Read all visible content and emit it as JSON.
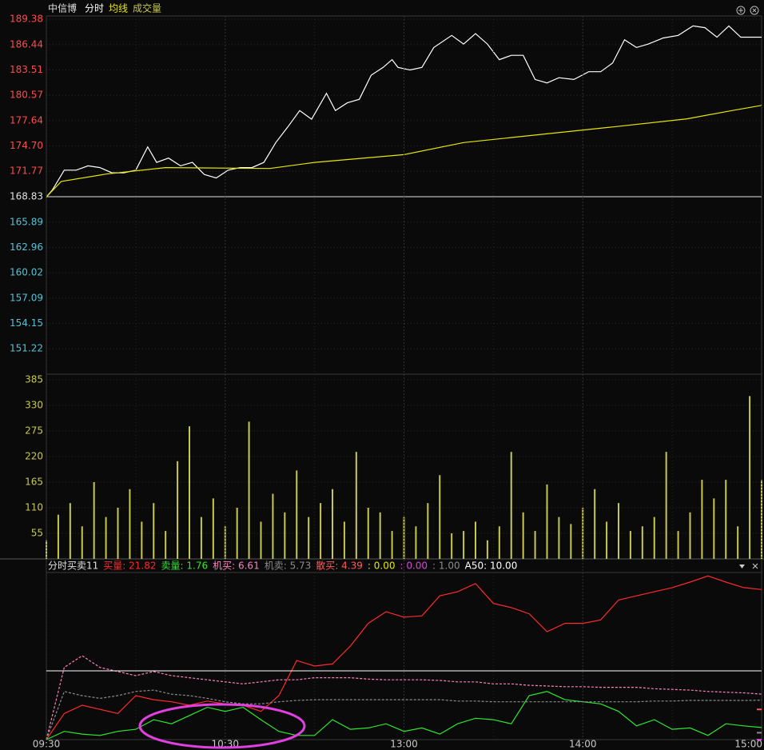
{
  "chart_data": [
    {
      "type": "line",
      "title": "中信博",
      "series": [
        {
          "name": "分时",
          "color": "#ffffff",
          "x": [
            0,
            2,
            6,
            10,
            14,
            18,
            22,
            26,
            30,
            34,
            37,
            41,
            45,
            49,
            53,
            57,
            61,
            65,
            69,
            73,
            77,
            81,
            85,
            89,
            94,
            97,
            101,
            105,
            109,
            113,
            116,
            118,
            122,
            126,
            130,
            136,
            140,
            144,
            148,
            152,
            156,
            160,
            164,
            168,
            172,
            177,
            182,
            186,
            190,
            194,
            198,
            202,
            207,
            212,
            217,
            221,
            225,
            229,
            233,
            240
          ],
          "values": [
            168.8,
            169.6,
            171.9,
            171.9,
            172.4,
            172.2,
            171.6,
            171.6,
            171.9,
            174.6,
            172.8,
            173.3,
            172.4,
            172.8,
            171.4,
            171.0,
            171.9,
            172.2,
            172.2,
            172.8,
            175.1,
            176.9,
            178.8,
            177.8,
            180.8,
            178.8,
            179.7,
            180.1,
            182.9,
            183.8,
            184.7,
            183.8,
            183.5,
            183.8,
            186.1,
            187.5,
            186.5,
            187.7,
            186.5,
            184.7,
            185.2,
            185.2,
            182.4,
            182.0,
            182.6,
            182.4,
            183.3,
            183.3,
            184.3,
            187.0,
            186.1,
            186.5,
            187.2,
            187.5,
            188.6,
            188.4,
            187.3,
            188.6,
            187.3,
            187.3
          ]
        },
        {
          "name": "均线",
          "color": "#e6e600",
          "x": [
            0,
            5,
            20,
            40,
            75,
            90,
            120,
            140,
            165,
            190,
            215,
            230,
            240
          ],
          "values": [
            168.8,
            170.6,
            171.45,
            172.2,
            172.1,
            172.8,
            173.7,
            175.1,
            176.0,
            176.9,
            177.85,
            178.8,
            179.4
          ]
        }
      ],
      "xlim": [
        0,
        240
      ],
      "ylim": [
        148.28,
        189.75
      ],
      "yticks": [
        189.38,
        186.44,
        183.51,
        180.57,
        177.64,
        {
          "value": 174.7,
          "label": "174.70"
        },
        171.77,
        168.83,
        165.89,
        162.96,
        160.02,
        157.09,
        154.15,
        151.22
      ],
      "prev_close": 168.83,
      "up_color": "#ff4b4b",
      "down_color": "#56c2d6",
      "flat_color": "#e0e0e0",
      "grid": true
    },
    {
      "type": "bar",
      "series": [
        {
          "name": "成交量",
          "color": "#c8c850",
          "x": [
            0,
            4,
            8,
            12,
            16,
            20,
            24,
            28,
            32,
            36,
            40,
            44,
            48,
            52,
            56,
            60,
            64,
            68,
            72,
            76,
            80,
            84,
            88,
            92,
            96,
            100,
            104,
            108,
            112,
            116,
            120,
            124,
            128,
            132,
            136,
            140,
            144,
            148,
            152,
            156,
            160,
            164,
            168,
            172,
            176,
            180,
            184,
            188,
            192,
            196,
            200,
            204,
            208,
            212,
            216,
            220,
            224,
            228,
            232,
            236,
            240
          ],
          "values": [
            40,
            95,
            120,
            70,
            165,
            90,
            110,
            150,
            80,
            120,
            60,
            210,
            285,
            90,
            130,
            70,
            110,
            295,
            80,
            140,
            100,
            190,
            90,
            120,
            150,
            80,
            230,
            110,
            100,
            60,
            90,
            70,
            120,
            180,
            55,
            60,
            80,
            40,
            70,
            230,
            100,
            60,
            160,
            90,
            75,
            110,
            150,
            80,
            120,
            60,
            70,
            90,
            230,
            60,
            100,
            170,
            130,
            170,
            70,
            350,
            170
          ]
        }
      ],
      "xlim": [
        0,
        240
      ],
      "ylim": [
        0,
        397
      ],
      "yticks": [
        55,
        110,
        165,
        220,
        275,
        330,
        385
      ],
      "tick_color": "#c8c850",
      "grid": true
    },
    {
      "type": "line",
      "title": "分时买卖11",
      "legend_separator": ": ",
      "x": [
        0,
        6,
        12,
        18,
        24,
        30,
        36,
        42,
        48,
        54,
        60,
        66,
        72,
        78,
        84,
        90,
        96,
        102,
        108,
        114,
        120,
        126,
        132,
        138,
        144,
        150,
        156,
        162,
        168,
        174,
        180,
        186,
        192,
        198,
        204,
        210,
        216,
        222,
        228,
        234,
        240
      ],
      "series": [
        {
          "name": "买量",
          "color": "#ff2a2a",
          "value_label": "21.82",
          "values": [
            0,
            3.8,
            5.0,
            4.4,
            3.8,
            6.4,
            5.8,
            5.5,
            5.0,
            5.6,
            5.2,
            5.0,
            4.1,
            6.4,
            11.5,
            10.7,
            11.0,
            13.6,
            16.9,
            18.6,
            17.8,
            18.0,
            20.9,
            21.5,
            22.7,
            19.8,
            19.2,
            18.3,
            15.7,
            16.9,
            16.9,
            17.4,
            20.3,
            20.9,
            21.5,
            22.1,
            22.9,
            23.8,
            22.9,
            22.1,
            21.82
          ]
        },
        {
          "name": "卖量",
          "color": "#2ee82e",
          "value_label": "1.76",
          "values": [
            0,
            1.2,
            0.8,
            0.6,
            1.2,
            1.5,
            2.9,
            2.3,
            3.5,
            4.7,
            4.1,
            4.7,
            2.9,
            1.2,
            0.6,
            0.6,
            2.9,
            1.5,
            1.7,
            2.3,
            1.2,
            1.7,
            0.8,
            2.3,
            3.1,
            2.9,
            2.3,
            6.4,
            7.0,
            5.8,
            5.5,
            5.2,
            4.1,
            2.0,
            2.9,
            1.5,
            1.7,
            0.6,
            2.3,
            2.0,
            1.76
          ]
        },
        {
          "name": "机买",
          "color": "#ff80c0",
          "value_label": "6.61",
          "line_style": "dashed",
          "values": [
            0,
            10.5,
            12.2,
            10.5,
            9.9,
            9.3,
            9.9,
            9.3,
            9.0,
            8.7,
            8.4,
            8.1,
            8.4,
            8.7,
            8.7,
            9.0,
            9.0,
            9.0,
            8.8,
            8.7,
            8.7,
            8.7,
            8.6,
            8.4,
            8.4,
            8.1,
            8.1,
            7.9,
            7.8,
            7.7,
            7.7,
            7.6,
            7.6,
            7.6,
            7.4,
            7.3,
            7.2,
            7.0,
            6.9,
            6.8,
            6.61
          ]
        },
        {
          "name": "机卖",
          "color": "#8c8c8c",
          "value_label": "5.73",
          "line_style": "dashed",
          "values": [
            0,
            7.0,
            6.4,
            6.0,
            6.4,
            7.0,
            7.2,
            6.6,
            6.4,
            6.0,
            5.5,
            5.2,
            5.2,
            5.5,
            5.7,
            5.8,
            5.8,
            5.8,
            5.8,
            5.8,
            5.8,
            5.8,
            5.8,
            5.6,
            5.6,
            5.5,
            5.5,
            5.5,
            5.5,
            5.5,
            5.5,
            5.5,
            5.5,
            5.5,
            5.6,
            5.6,
            5.7,
            5.7,
            5.7,
            5.7,
            5.73
          ]
        }
      ],
      "readouts": [
        {
          "name": "散买",
          "color": "#ff5a5a",
          "value": 4.39,
          "value_label": "4.39",
          "style": "marker"
        },
        {
          "color": "#e6e600",
          "value": 0,
          "value_label": "0.00",
          "style": "marker"
        },
        {
          "color": "#e040e0",
          "value": 0,
          "value_label": "0.00",
          "style": "marker"
        },
        {
          "color": "#8c8c8c",
          "value": 1,
          "value_label": "1.00",
          "style": "marker"
        },
        {
          "name": "A50",
          "color": "#ffffff",
          "value": 10,
          "value_label": "10.00",
          "style": "hline"
        }
      ],
      "xlim": [
        0,
        240
      ],
      "ylim": [
        0,
        24.3
      ],
      "xticks": [
        {
          "value": 0,
          "label": "09:30"
        },
        {
          "value": 30,
          "label": null
        },
        {
          "value": 60,
          "label": "10:30"
        },
        {
          "value": 90,
          "label": null
        },
        {
          "value": 120,
          "label": "13:00"
        },
        {
          "value": 150,
          "label": null
        },
        {
          "value": 180,
          "label": "14:00"
        },
        {
          "value": 210,
          "label": null
        },
        {
          "value": 240,
          "label": "15:00"
        }
      ]
    }
  ]
}
